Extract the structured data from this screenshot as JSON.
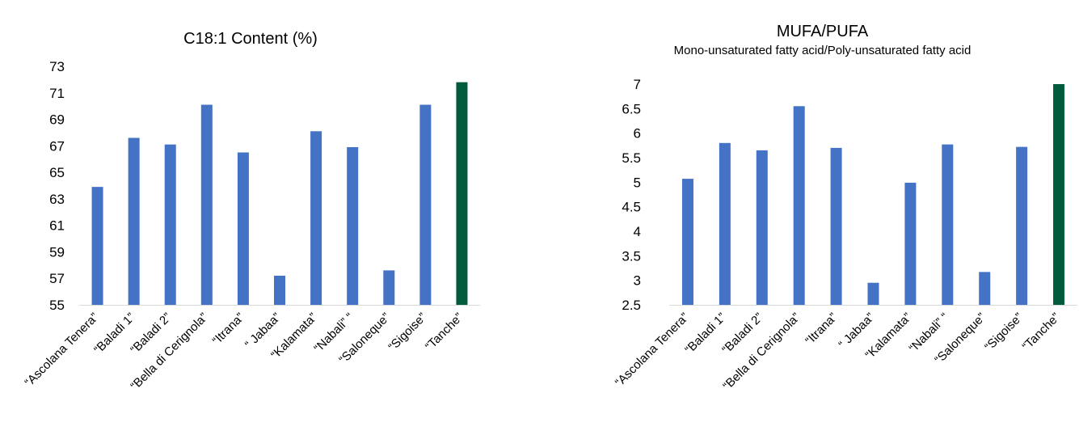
{
  "colors": {
    "bar": "#4472C4",
    "highlight": "#005A3C",
    "axis": "#D9D9D9"
  },
  "chart_data": [
    {
      "type": "bar",
      "title": "C18:1 Content (%)",
      "subtitle": "",
      "categories": [
        "“Ascolana Tenera”",
        "“Baladi 1”",
        "“Baladi 2”",
        "“Bella di Cerignola”",
        "“Itrana”",
        "“ Jabaa”",
        "“Kalamata”",
        "“Nabali” “",
        "“Saloneque”",
        "“Sigoise”",
        "“Tanche”"
      ],
      "values": [
        63.9,
        67.6,
        67.1,
        70.1,
        66.5,
        57.2,
        68.1,
        66.9,
        57.6,
        70.1,
        71.8
      ],
      "highlight_index": 10,
      "ylim": [
        55,
        73
      ],
      "yticks": [
        "55",
        "57",
        "59",
        "61",
        "63",
        "65",
        "67",
        "69",
        "71",
        "73"
      ],
      "grid": false,
      "legend": "none"
    },
    {
      "type": "bar",
      "title": "MUFA/PUFA",
      "subtitle": "Mono-unsaturated fatty acid/Poly-unsaturated fatty acid",
      "categories": [
        "“Ascolana Tenera”",
        "“Baladi 1”",
        "“Baladi 2”",
        "“Bella di Cerignola”",
        "“Itrana”",
        "“ Jabaa”",
        "“Kalamata”",
        "“Nabali” “",
        "“Saloneque”",
        "“Sigoise”",
        "“Tanche”"
      ],
      "values": [
        5.07,
        5.8,
        5.65,
        6.55,
        5.7,
        2.95,
        4.99,
        5.77,
        3.17,
        5.72,
        7.0
      ],
      "highlight_index": 10,
      "ylim": [
        2.5,
        7
      ],
      "yticks": [
        "2.5",
        "3",
        "3.5",
        "4",
        "4.5",
        "5",
        "5.5",
        "6",
        "6.5",
        "7"
      ],
      "grid": false,
      "legend": "none"
    }
  ]
}
